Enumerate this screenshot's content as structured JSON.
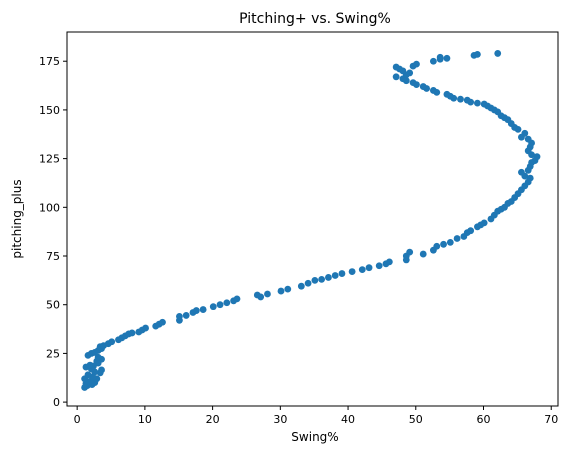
{
  "chart_data": {
    "type": "scatter",
    "title": "Pitching+ vs. Swing%",
    "xlabel": "Swing%",
    "ylabel": "pitching_plus",
    "xlim": [
      -1.5,
      71
    ],
    "ylim": [
      -2,
      190
    ],
    "xticks": [
      0,
      10,
      20,
      30,
      40,
      50,
      60,
      70
    ],
    "yticks": [
      0,
      25,
      50,
      75,
      100,
      125,
      150,
      175
    ],
    "grid": false,
    "marker_color": "#1f77b4",
    "points": [
      [
        1.1,
        7.5
      ],
      [
        1.5,
        8.5
      ],
      [
        1.3,
        9.5
      ],
      [
        2.2,
        9
      ],
      [
        1.6,
        10.5
      ],
      [
        2.6,
        10
      ],
      [
        2.1,
        11
      ],
      [
        1.1,
        12
      ],
      [
        2.9,
        12
      ],
      [
        2.3,
        13
      ],
      [
        1.6,
        14
      ],
      [
        3.4,
        15
      ],
      [
        2.6,
        15.5
      ],
      [
        3.6,
        16.5
      ],
      [
        2.1,
        17
      ],
      [
        1.3,
        18
      ],
      [
        2.4,
        18.5
      ],
      [
        1.9,
        19
      ],
      [
        3.1,
        20
      ],
      [
        2.9,
        21
      ],
      [
        3.6,
        22
      ],
      [
        3.1,
        23
      ],
      [
        1.6,
        24
      ],
      [
        2.1,
        25
      ],
      [
        2.6,
        25.5
      ],
      [
        3.1,
        26.5
      ],
      [
        3.6,
        27.5
      ],
      [
        3.4,
        28.5
      ],
      [
        3.9,
        29
      ],
      [
        4.6,
        30
      ],
      [
        5.1,
        31
      ],
      [
        6.1,
        32
      ],
      [
        6.6,
        33
      ],
      [
        7.1,
        34
      ],
      [
        7.6,
        35
      ],
      [
        8.1,
        35.5
      ],
      [
        9.1,
        36
      ],
      [
        9.6,
        37
      ],
      [
        10.1,
        38
      ],
      [
        11.6,
        39
      ],
      [
        12.1,
        40
      ],
      [
        12.6,
        41
      ],
      [
        15.1,
        42
      ],
      [
        15.1,
        44
      ],
      [
        16.1,
        44.5
      ],
      [
        17.1,
        46
      ],
      [
        17.6,
        47
      ],
      [
        18.6,
        47.5
      ],
      [
        20.1,
        49
      ],
      [
        21.1,
        50
      ],
      [
        22.1,
        51
      ],
      [
        23.1,
        52
      ],
      [
        23.6,
        53
      ],
      [
        26.6,
        55
      ],
      [
        27.1,
        54
      ],
      [
        28.1,
        55.5
      ],
      [
        30.1,
        57
      ],
      [
        31.1,
        58
      ],
      [
        33.1,
        59.5
      ],
      [
        34.1,
        61
      ],
      [
        35.1,
        62.5
      ],
      [
        36.1,
        63
      ],
      [
        37.1,
        64
      ],
      [
        38.1,
        65
      ],
      [
        39.1,
        66
      ],
      [
        40.6,
        67
      ],
      [
        42.1,
        68
      ],
      [
        43.1,
        69
      ],
      [
        44.6,
        70
      ],
      [
        45.6,
        71
      ],
      [
        46.1,
        72
      ],
      [
        48.6,
        73
      ],
      [
        48.6,
        75
      ],
      [
        49.1,
        77
      ],
      [
        51.1,
        76
      ],
      [
        52.6,
        78
      ],
      [
        53.1,
        80
      ],
      [
        54.1,
        81
      ],
      [
        55.1,
        82
      ],
      [
        56.1,
        84
      ],
      [
        57.1,
        85
      ],
      [
        57.6,
        87
      ],
      [
        58.1,
        88
      ],
      [
        59.1,
        90
      ],
      [
        59.6,
        91
      ],
      [
        60.1,
        92
      ],
      [
        61.1,
        94
      ],
      [
        61.6,
        96
      ],
      [
        62.1,
        98
      ],
      [
        62.6,
        99
      ],
      [
        63.1,
        100
      ],
      [
        63.6,
        102
      ],
      [
        64.1,
        103
      ],
      [
        64.6,
        105
      ],
      [
        65.1,
        107
      ],
      [
        65.6,
        109
      ],
      [
        66.1,
        111
      ],
      [
        66.6,
        113
      ],
      [
        66.9,
        115
      ],
      [
        66.1,
        116
      ],
      [
        65.6,
        118
      ],
      [
        66.6,
        119
      ],
      [
        66.9,
        121
      ],
      [
        67.1,
        123
      ],
      [
        67.6,
        124
      ],
      [
        67.9,
        126
      ],
      [
        67.1,
        127
      ],
      [
        66.6,
        129
      ],
      [
        66.9,
        131
      ],
      [
        67.1,
        133
      ],
      [
        66.6,
        135
      ],
      [
        65.6,
        136
      ],
      [
        66.1,
        138
      ],
      [
        65.1,
        140
      ],
      [
        64.6,
        141
      ],
      [
        64.1,
        143
      ],
      [
        63.6,
        145
      ],
      [
        63.1,
        146
      ],
      [
        62.6,
        147
      ],
      [
        62.1,
        149
      ],
      [
        61.6,
        150
      ],
      [
        61.1,
        151
      ],
      [
        60.6,
        152
      ],
      [
        60.1,
        153
      ],
      [
        59.1,
        153.5
      ],
      [
        58.1,
        154
      ],
      [
        57.6,
        155
      ],
      [
        56.6,
        155.5
      ],
      [
        55.6,
        156
      ],
      [
        55.1,
        157
      ],
      [
        54.6,
        158
      ],
      [
        53.1,
        159
      ],
      [
        52.6,
        160
      ],
      [
        51.6,
        161
      ],
      [
        51.1,
        162
      ],
      [
        50.1,
        163
      ],
      [
        49.6,
        164
      ],
      [
        48.6,
        165
      ],
      [
        48.1,
        166
      ],
      [
        47.1,
        167
      ],
      [
        48.6,
        168
      ],
      [
        49.1,
        169
      ],
      [
        48.1,
        170
      ],
      [
        47.6,
        171
      ],
      [
        47.1,
        172
      ],
      [
        49.6,
        172.5
      ],
      [
        50.1,
        173.5
      ],
      [
        52.6,
        175
      ],
      [
        53.6,
        176
      ],
      [
        54.6,
        176.5
      ],
      [
        53.6,
        177
      ],
      [
        58.6,
        178
      ],
      [
        59.1,
        178.5
      ],
      [
        62.1,
        179
      ]
    ]
  }
}
